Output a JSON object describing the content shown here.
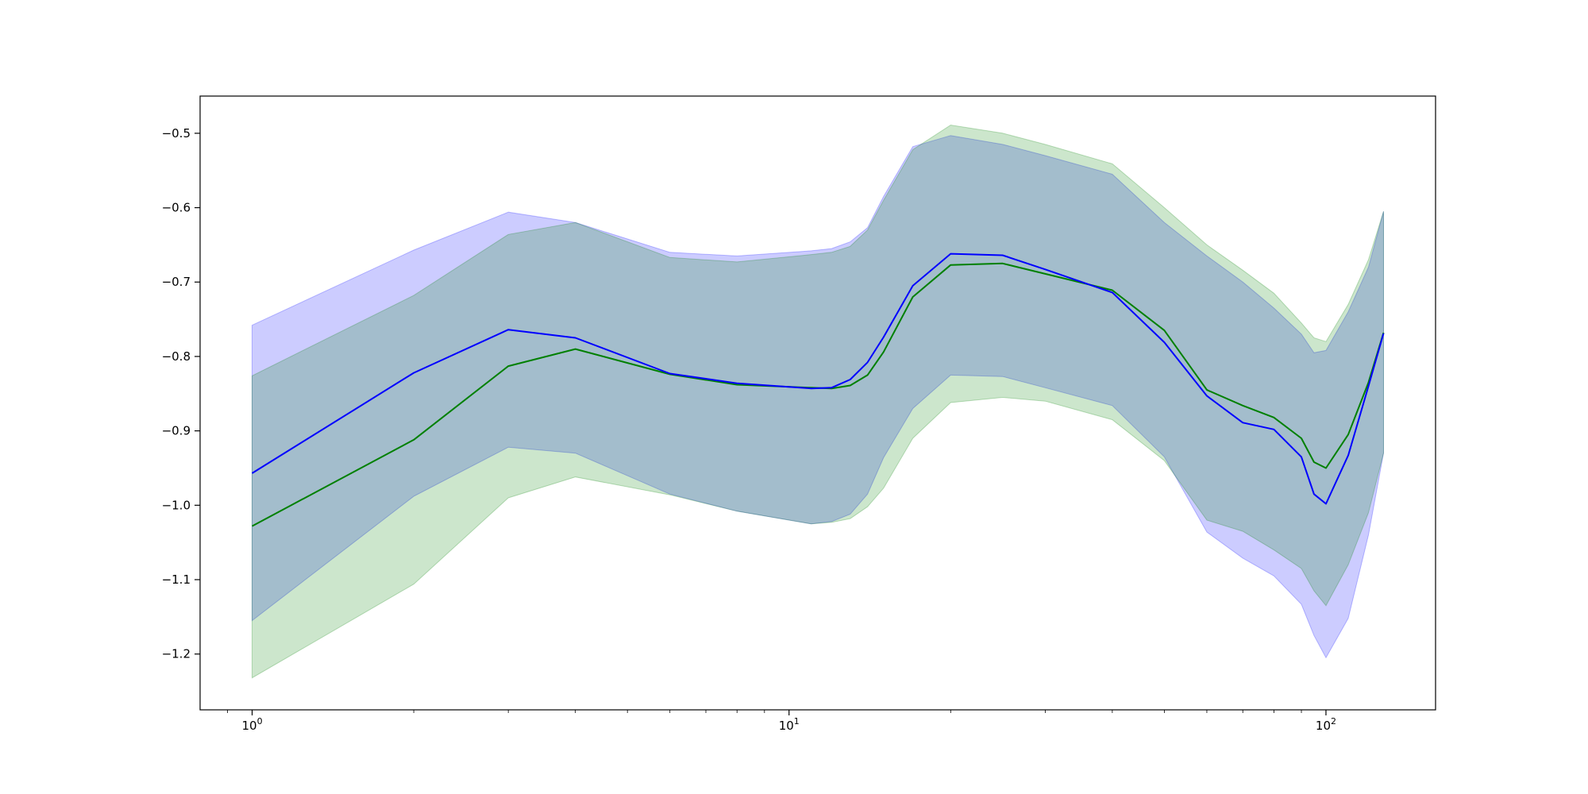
{
  "chart_data": {
    "type": "area",
    "title": "",
    "xlabel": "",
    "ylabel": "",
    "xscale": "log",
    "xlim": [
      0.8,
      160
    ],
    "ylim": [
      -1.275,
      -0.45
    ],
    "grid": false,
    "legend": "none",
    "x_ticks": [
      {
        "value": 1,
        "base": "10",
        "exp": "0"
      },
      {
        "value": 10,
        "base": "10",
        "exp": "1"
      },
      {
        "value": 100,
        "base": "10",
        "exp": "2"
      }
    ],
    "y_ticks": [
      -0.5,
      -0.6,
      -0.7,
      -0.8,
      -0.9,
      -1.0,
      -1.1,
      -1.2
    ],
    "y_tick_labels": [
      "−0.5",
      "−0.6",
      "−0.7",
      "−0.8",
      "−0.9",
      "−1.0",
      "−1.1",
      "−1.2"
    ],
    "x": [
      1,
      2,
      3,
      4,
      6,
      8,
      11,
      12,
      13,
      14,
      15,
      17,
      20,
      25,
      30,
      40,
      50,
      60,
      70,
      80,
      90,
      95,
      100,
      110,
      120,
      128
    ],
    "series": [
      {
        "color": "#0000ff",
        "band_color": "#0000ff",
        "band_alpha": 0.2,
        "values": [
          -0.957,
          -0.822,
          -0.764,
          -0.775,
          -0.823,
          -0.836,
          -0.843,
          -0.842,
          -0.831,
          -0.808,
          -0.774,
          -0.705,
          -0.662,
          -0.664,
          -0.683,
          -0.714,
          -0.781,
          -0.853,
          -0.889,
          -0.898,
          -0.935,
          -0.985,
          -0.998,
          -0.933,
          -0.84,
          -0.769
        ],
        "lower": [
          -1.155,
          -0.988,
          -0.922,
          -0.93,
          -0.985,
          -1.008,
          -1.025,
          -1.022,
          -1.012,
          -0.985,
          -0.936,
          -0.87,
          -0.825,
          -0.827,
          -0.842,
          -0.866,
          -0.935,
          -1.036,
          -1.071,
          -1.095,
          -1.133,
          -1.175,
          -1.205,
          -1.152,
          -1.04,
          -0.93
        ],
        "upper": [
          -0.758,
          -0.657,
          -0.606,
          -0.62,
          -0.66,
          -0.665,
          -0.658,
          -0.655,
          -0.646,
          -0.627,
          -0.585,
          -0.518,
          -0.503,
          -0.515,
          -0.53,
          -0.555,
          -0.62,
          -0.665,
          -0.7,
          -0.735,
          -0.77,
          -0.795,
          -0.792,
          -0.74,
          -0.68,
          -0.605
        ]
      },
      {
        "color": "#008000",
        "band_color": "#008000",
        "band_alpha": 0.2,
        "values": [
          -1.028,
          -0.912,
          -0.813,
          -0.79,
          -0.824,
          -0.838,
          -0.842,
          -0.843,
          -0.839,
          -0.825,
          -0.794,
          -0.72,
          -0.677,
          -0.675,
          -0.689,
          -0.711,
          -0.765,
          -0.845,
          -0.866,
          -0.882,
          -0.91,
          -0.942,
          -0.95,
          -0.905,
          -0.835,
          -0.768
        ],
        "lower": [
          -1.232,
          -1.106,
          -0.99,
          -0.962,
          -0.986,
          -1.008,
          -1.025,
          -1.023,
          -1.018,
          -1.002,
          -0.977,
          -0.91,
          -0.862,
          -0.855,
          -0.86,
          -0.885,
          -0.94,
          -1.02,
          -1.035,
          -1.06,
          -1.085,
          -1.115,
          -1.135,
          -1.08,
          -1.01,
          -0.93
        ],
        "upper": [
          -0.826,
          -0.718,
          -0.636,
          -0.62,
          -0.667,
          -0.673,
          -0.663,
          -0.66,
          -0.652,
          -0.63,
          -0.59,
          -0.522,
          -0.489,
          -0.5,
          -0.515,
          -0.541,
          -0.6,
          -0.65,
          -0.684,
          -0.715,
          -0.755,
          -0.775,
          -0.78,
          -0.73,
          -0.67,
          -0.605
        ]
      }
    ]
  }
}
